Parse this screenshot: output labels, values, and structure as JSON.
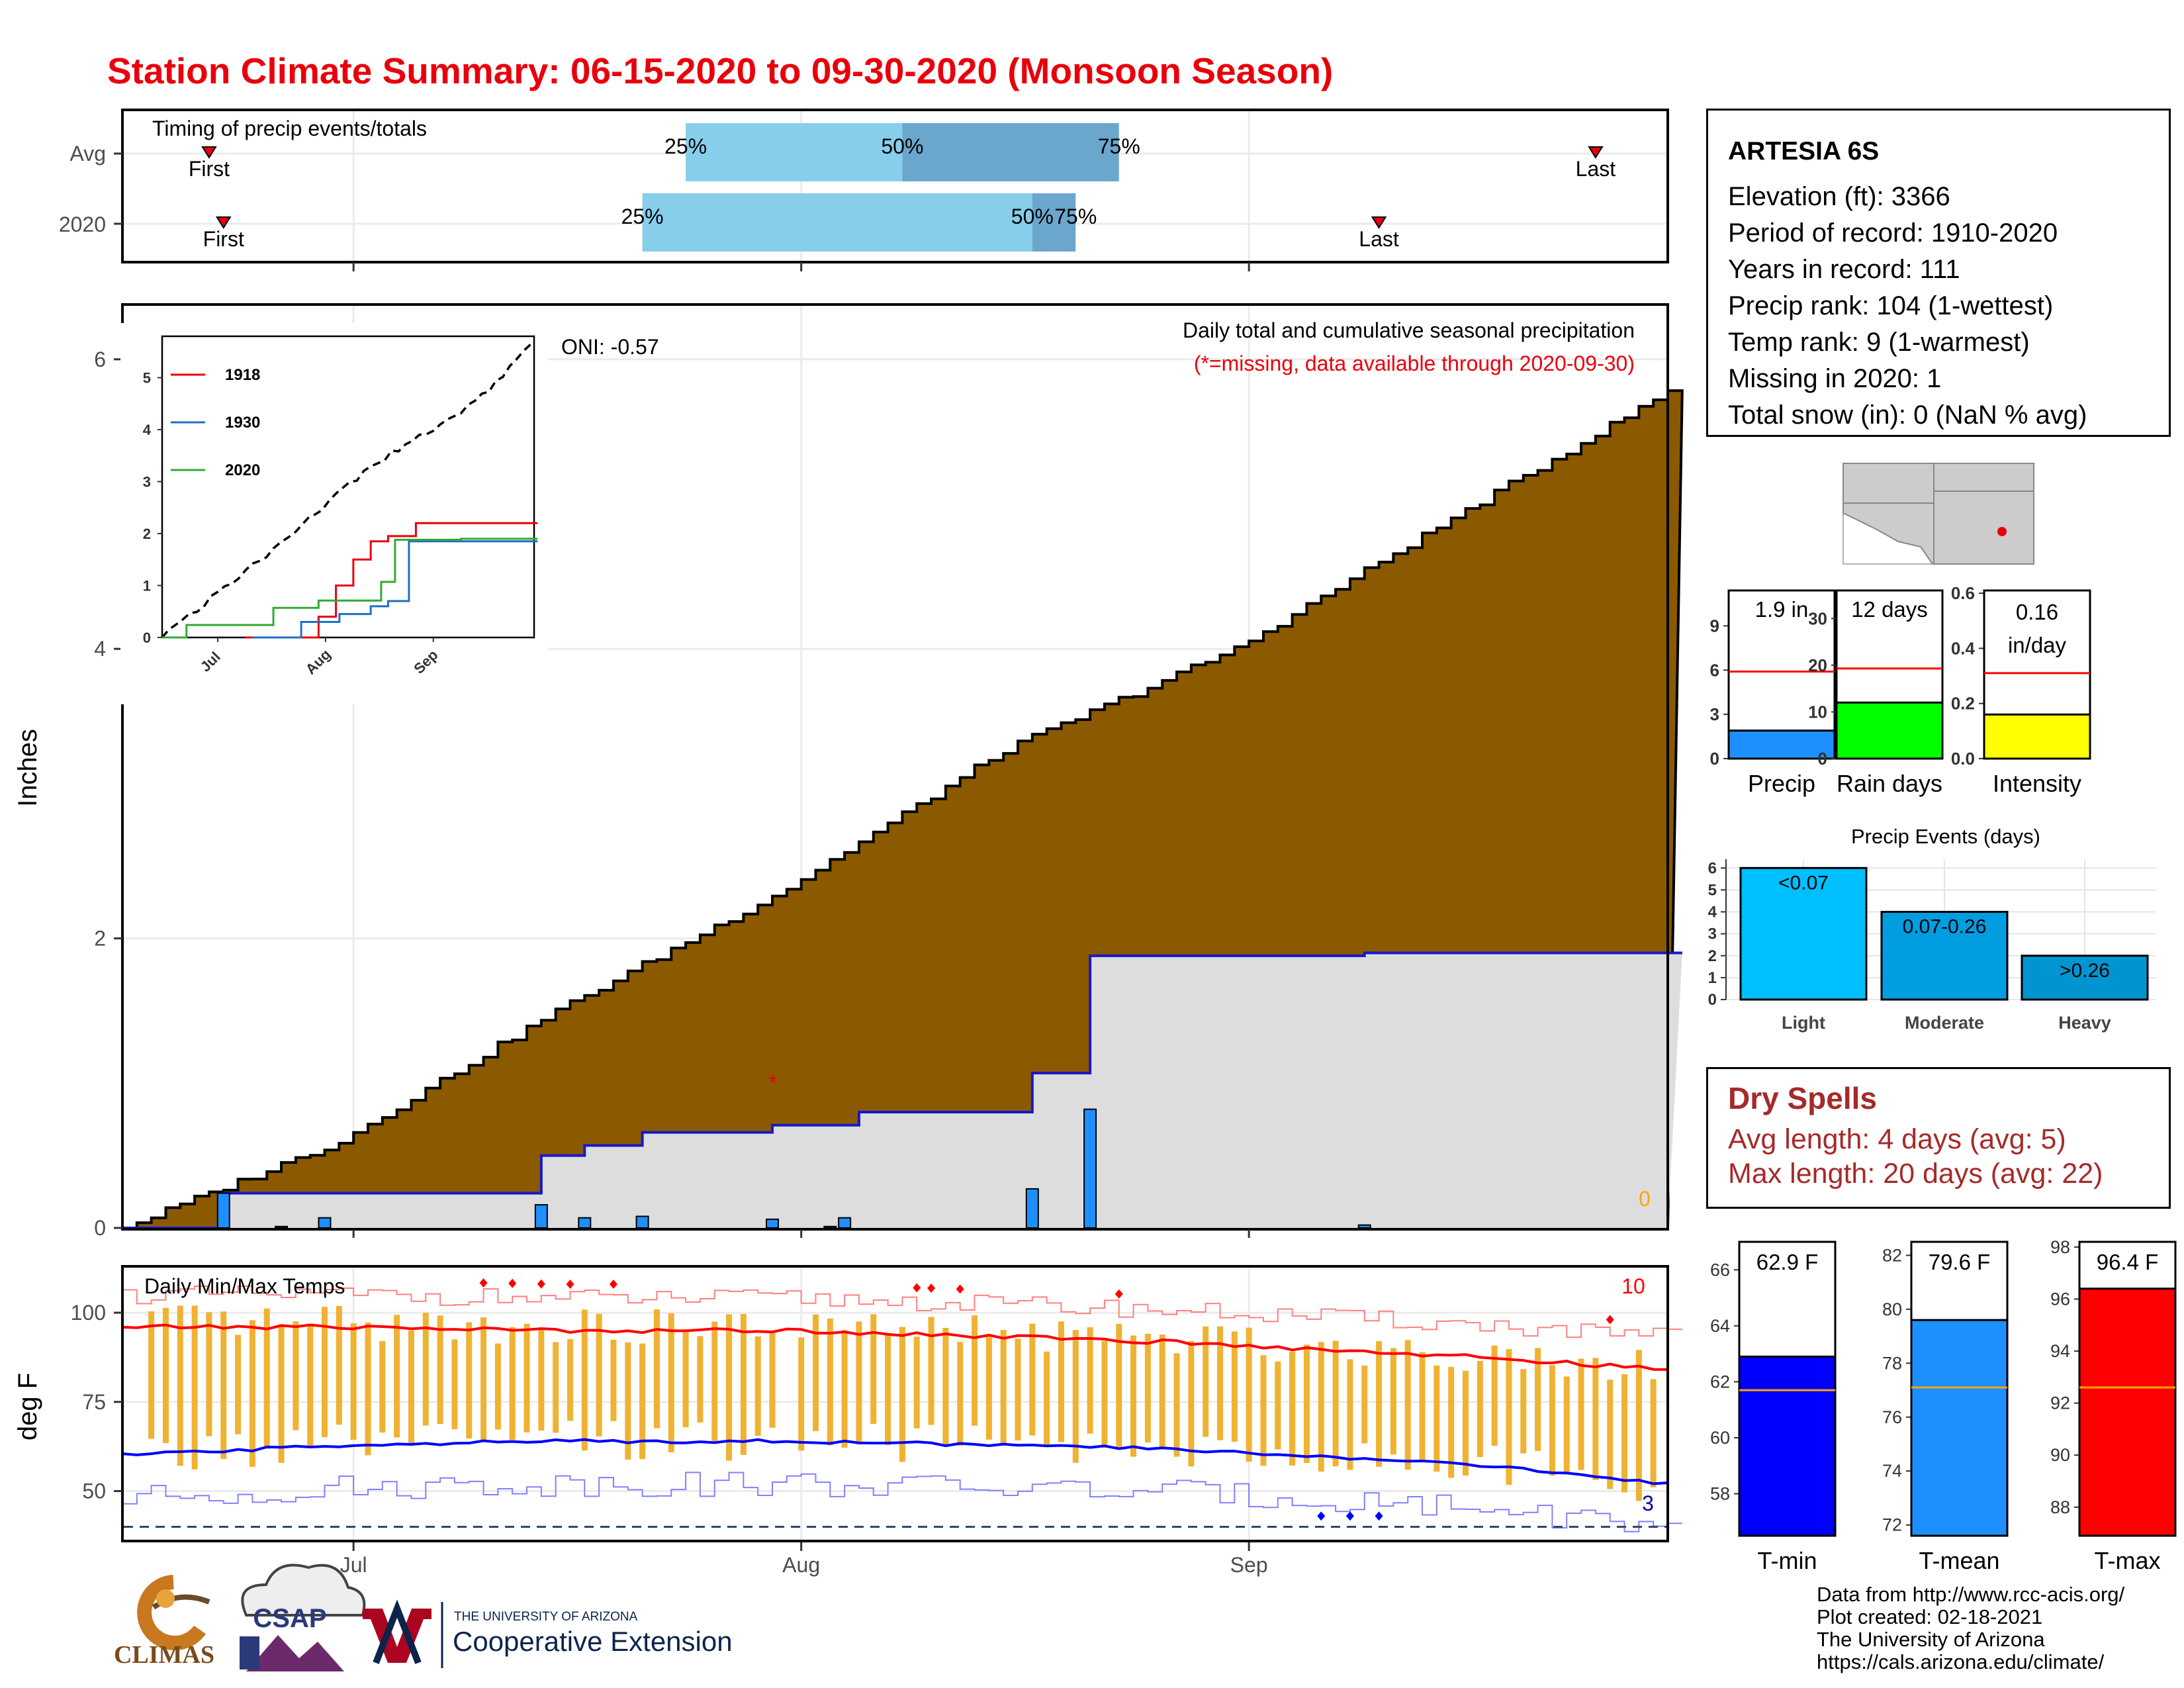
{
  "title": "Station Climate Summary: 06-15-2020 to 09-30-2020 (Monsoon Season)",
  "colors": {
    "title": "#e8000b",
    "cumulative_fill": "#8b5a00",
    "normal_fill": "#dddddd",
    "avg_line": "#1818c8",
    "bar_blue": "#1e8fff",
    "light_blue": "#87ceeb",
    "mid_blue": "#6ba6cd",
    "temp_bar": "#f0b232",
    "max_line": "#ff0000",
    "min_line": "#0000ff",
    "green": "#00ff00",
    "yellow": "#ffff00"
  },
  "timing": {
    "title": "Timing of precip events/totals",
    "rows": [
      {
        "label": "Avg",
        "first_label": "First",
        "last_label": "Last",
        "first": "06-21",
        "p25": "07-24",
        "p50": "08-08",
        "p75": "08-23",
        "last": "09-25"
      },
      {
        "label": "2020",
        "first_label": "First",
        "last_label": "Last",
        "first": "06-22",
        "p25": "07-21",
        "p50": "08-17",
        "p75": "08-20",
        "last": "09-10"
      }
    ],
    "pct_labels": [
      "25%",
      "50%",
      "75%"
    ]
  },
  "precip_panel": {
    "ylabel": "Inches",
    "yticks": [
      "0",
      "2",
      "4",
      "6"
    ],
    "xticks": [
      "Jul",
      "Aug",
      "Sep"
    ],
    "oni": "ONI: -0.57",
    "subtitle": "Daily total and cumulative seasonal precipitation",
    "missing_note": "(*=missing, data available through 2020-09-30)",
    "corner_value": "0"
  },
  "inset": {
    "yticks": [
      "0",
      "1",
      "2",
      "3",
      "4",
      "5"
    ],
    "xticks": [
      "Jul",
      "Aug",
      "Sep"
    ],
    "legend": [
      "1918",
      "1930",
      "2020"
    ]
  },
  "temp_panel": {
    "ylabel": "deg F",
    "title": "Daily Min/Max Temps",
    "yticks": [
      "50",
      "75",
      "100"
    ],
    "xticks": [
      "Jul",
      "Aug",
      "Sep"
    ],
    "max_count": "10",
    "min_count": "3"
  },
  "info": {
    "station": "ARTESIA 6S",
    "lines": [
      "Elevation (ft): 3366",
      "Period of record: 1910-2020",
      "Years in record: 111",
      "Precip rank: 104 (1-wettest)",
      "Temp rank: 9 (1-warmest)",
      "Missing in 2020: 1",
      "Total snow (in): 0 (NaN % avg)"
    ]
  },
  "mini_bars": [
    {
      "label": "Precip",
      "value_label": "1.9 in",
      "value": 1.9,
      "avg": 5.9,
      "ymax": 11.4,
      "yticks": [
        "0",
        "3",
        "6",
        "9"
      ],
      "tickvals": [
        0,
        3,
        6,
        9
      ],
      "color": "#1e8fff"
    },
    {
      "label": "Rain days",
      "value_label": "12 days",
      "value": 12,
      "avg": 19.3,
      "ymax": 36,
      "yticks": [
        "0",
        "10",
        "20",
        "30"
      ],
      "tickvals": [
        0,
        10,
        20,
        30
      ],
      "color": "#00ff00"
    },
    {
      "label": "Intensity",
      "value_label": "0.16 in/day",
      "value_line1": "0.16",
      "value_line2": "in/day",
      "value": 0.16,
      "avg": 0.31,
      "ymax": 0.61,
      "yticks": [
        "0.0",
        "0.2",
        "0.4",
        "0.6"
      ],
      "tickvals": [
        0,
        0.2,
        0.4,
        0.6
      ],
      "color": "#ffff00"
    }
  ],
  "events": {
    "title": "Precip Events (days)",
    "yticks": [
      "0",
      "1",
      "2",
      "3",
      "4",
      "5",
      "6"
    ],
    "categories": [
      "Light",
      "Moderate",
      "Heavy"
    ],
    "value_labels": [
      "<0.07",
      "0.07-0.26",
      ">0.26"
    ],
    "values": [
      6,
      4,
      2
    ],
    "colors": [
      "#00bfff",
      "#009ee0",
      "#0095d0"
    ]
  },
  "dry_spells": {
    "title": "Dry Spells",
    "avg_line": "Avg length: 4 days (avg: 5)",
    "max_line": "Max length: 20 days (avg: 22)"
  },
  "temp_bars": [
    {
      "label": "T-min",
      "value_label": "62.9 F",
      "value": 62.9,
      "avg": 61.7,
      "ymin": 56.5,
      "ymax": 67,
      "yticks": [
        "58",
        "60",
        "62",
        "64",
        "66"
      ],
      "tickvals": [
        58,
        60,
        62,
        64,
        66
      ],
      "color": "#0000ff"
    },
    {
      "label": "T-mean",
      "value_label": "79.6 F",
      "value": 79.6,
      "avg": 77.1,
      "ymin": 71.6,
      "ymax": 82.5,
      "yticks": [
        "72",
        "74",
        "76",
        "78",
        "80",
        "82"
      ],
      "tickvals": [
        72,
        74,
        76,
        78,
        80,
        82
      ],
      "color": "#1e8fff"
    },
    {
      "label": "T-max",
      "value_label": "96.4 F",
      "value": 96.4,
      "avg": 92.6,
      "ymin": 86.9,
      "ymax": 98.2,
      "yticks": [
        "88",
        "90",
        "92",
        "94",
        "96",
        "98"
      ],
      "tickvals": [
        88,
        90,
        92,
        94,
        96,
        98
      ],
      "color": "#ff0000"
    }
  ],
  "credits": [
    "Data from http://www.rcc-acis.org/",
    "Plot created: 02-18-2021",
    "The University of Arizona",
    "https://cals.arizona.edu/climate/"
  ],
  "logos": {
    "climas": "CLIMAS",
    "csap": "CSAP",
    "ua_small": "THE UNIVERSITY OF ARIZONA",
    "ua_big": "Cooperative Extension"
  },
  "chart_data": [
    {
      "type": "area",
      "title": "Daily total and cumulative seasonal precipitation",
      "ylabel": "Inches",
      "ylim": [
        0,
        6.4
      ],
      "xlim": [
        "06-15",
        "09-30"
      ],
      "series": [
        {
          "name": "cumulative average",
          "x": [
            "06-15",
            "06-30",
            "07-15",
            "07-31",
            "08-15",
            "08-31",
            "09-15",
            "09-30"
          ],
          "values": [
            0.0,
            0.6,
            1.5,
            2.35,
            3.3,
            4.0,
            4.9,
            5.78
          ]
        },
        {
          "name": "2020 cumulative",
          "x": [
            "06-15",
            "06-22",
            "06-30",
            "07-14",
            "07-17",
            "07-21",
            "07-30",
            "08-05",
            "08-17",
            "08-21",
            "09-09",
            "09-30"
          ],
          "values": [
            0.0,
            0.24,
            0.24,
            0.5,
            0.57,
            0.66,
            0.71,
            0.8,
            1.07,
            1.88,
            1.9,
            1.9
          ]
        },
        {
          "name": "2020 daily",
          "x": [
            "06-22",
            "06-26",
            "06-29",
            "07-14",
            "07-17",
            "07-21",
            "07-30",
            "08-03",
            "08-04",
            "08-17",
            "08-21",
            "09-09"
          ],
          "values": [
            0.24,
            0.01,
            0.07,
            0.16,
            0.07,
            0.08,
            0.06,
            0.01,
            0.07,
            0.27,
            0.82,
            0.02
          ]
        }
      ],
      "missing_day": "07-30"
    },
    {
      "type": "line",
      "title": "",
      "ylim": [
        0,
        5.5
      ],
      "series": [
        {
          "name": "1918",
          "x": [
            "07-09",
            "07-30",
            "08-04",
            "08-09",
            "08-14",
            "08-19",
            "08-27",
            "09-30"
          ],
          "values": [
            0.0,
            0.4,
            1.0,
            1.5,
            1.85,
            1.95,
            2.2,
            2.2
          ]
        },
        {
          "name": "1930",
          "x": [
            "07-11",
            "07-25",
            "08-05",
            "08-14",
            "08-19",
            "08-25",
            "09-30"
          ],
          "values": [
            0.0,
            0.3,
            0.45,
            0.6,
            0.7,
            1.85,
            1.85
          ]
        },
        {
          "name": "2020",
          "x": [
            "06-15",
            "06-22",
            "07-17",
            "07-30",
            "08-17",
            "08-21",
            "09-09",
            "09-30"
          ],
          "values": [
            0.0,
            0.24,
            0.57,
            0.71,
            1.07,
            1.88,
            1.9,
            1.9
          ]
        }
      ]
    },
    {
      "type": "bar",
      "title": "Daily Min/Max Temps",
      "ylabel": "deg F",
      "ylim": [
        36,
        113
      ],
      "avg_max": [
        96,
        96,
        95,
        95,
        92,
        88,
        84
      ],
      "avg_min": [
        60,
        63,
        64,
        64,
        62,
        58,
        52
      ],
      "avg_dates": [
        "06-15",
        "07-01",
        "07-15",
        "08-01",
        "08-25",
        "09-15",
        "09-30"
      ],
      "record_high_days": 10,
      "record_low_days": 3,
      "freezing_line": 40
    }
  ]
}
